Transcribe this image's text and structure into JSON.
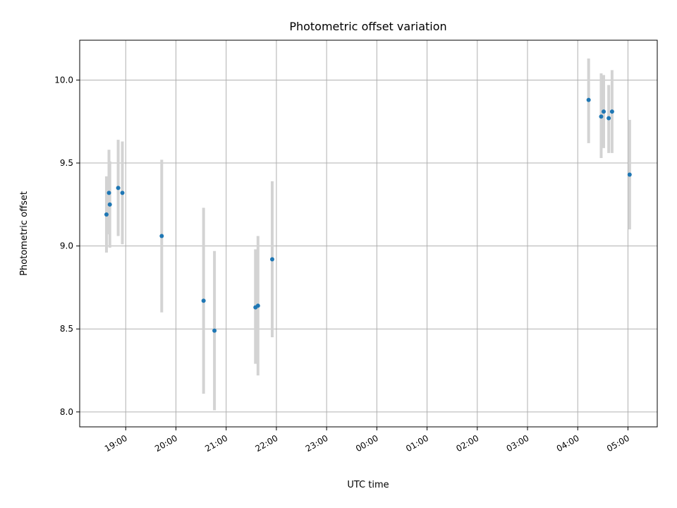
{
  "chart_data": {
    "type": "scatter",
    "title": "Photometric offset variation",
    "xlabel": "UTC time",
    "ylabel": "Photometric offset",
    "x_tick_labels": [
      "19:00",
      "20:00",
      "21:00",
      "22:00",
      "23:00",
      "00:00",
      "01:00",
      "02:00",
      "03:00",
      "04:00",
      "05:00"
    ],
    "x_ticks": [
      "19:00",
      "20:00",
      "21:00",
      "22:00",
      "23:00",
      "00:00",
      "01:00",
      "02:00",
      "03:00",
      "04:00",
      "05:00"
    ],
    "y_ticks": [
      8.0,
      8.5,
      9.0,
      9.5,
      10.0
    ],
    "y_tick_labels": [
      "8.0",
      "8.5",
      "9.0",
      "9.5",
      "10.0"
    ],
    "xlim": [
      "18:05",
      "05:35"
    ],
    "ylim": [
      7.91,
      10.24
    ],
    "grid": true,
    "marker_color": "#1f77b4",
    "errorbar_color": "#d3d3d3",
    "points": [
      {
        "x": "18:37",
        "y": 9.19,
        "ylow": 8.96,
        "yhigh": 9.42
      },
      {
        "x": "18:40",
        "y": 9.32,
        "ylow": 9.07,
        "yhigh": 9.58
      },
      {
        "x": "18:41",
        "y": 9.25,
        "ylow": 8.99,
        "yhigh": 9.51
      },
      {
        "x": "18:51",
        "y": 9.35,
        "ylow": 9.06,
        "yhigh": 9.64
      },
      {
        "x": "18:56",
        "y": 9.32,
        "ylow": 9.01,
        "yhigh": 9.63
      },
      {
        "x": "19:43",
        "y": 9.06,
        "ylow": 8.6,
        "yhigh": 9.52
      },
      {
        "x": "20:33",
        "y": 8.67,
        "ylow": 8.11,
        "yhigh": 9.23
      },
      {
        "x": "20:46",
        "y": 8.49,
        "ylow": 8.01,
        "yhigh": 8.97
      },
      {
        "x": "21:35",
        "y": 8.63,
        "ylow": 8.29,
        "yhigh": 8.98
      },
      {
        "x": "21:38",
        "y": 8.64,
        "ylow": 8.22,
        "yhigh": 9.06
      },
      {
        "x": "21:55",
        "y": 8.92,
        "ylow": 8.45,
        "yhigh": 9.39
      },
      {
        "x": "04:13",
        "y": 9.88,
        "ylow": 9.62,
        "yhigh": 10.13
      },
      {
        "x": "04:28",
        "y": 9.78,
        "ylow": 9.53,
        "yhigh": 10.04
      },
      {
        "x": "04:31",
        "y": 9.81,
        "ylow": 9.59,
        "yhigh": 10.03
      },
      {
        "x": "04:37",
        "y": 9.77,
        "ylow": 9.56,
        "yhigh": 9.97
      },
      {
        "x": "04:41",
        "y": 9.81,
        "ylow": 9.56,
        "yhigh": 10.06
      },
      {
        "x": "05:02",
        "y": 9.43,
        "ylow": 9.1,
        "yhigh": 9.76
      }
    ]
  }
}
